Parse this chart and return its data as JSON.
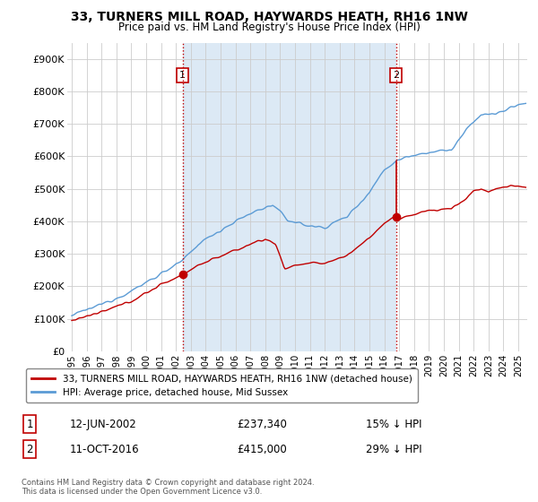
{
  "title": "33, TURNERS MILL ROAD, HAYWARDS HEATH, RH16 1NW",
  "subtitle": "Price paid vs. HM Land Registry's House Price Index (HPI)",
  "ylim": [
    0,
    950000
  ],
  "yticks": [
    0,
    100000,
    200000,
    300000,
    400000,
    500000,
    600000,
    700000,
    800000,
    900000
  ],
  "ytick_labels": [
    "£0",
    "£100K",
    "£200K",
    "£300K",
    "£400K",
    "£500K",
    "£600K",
    "£700K",
    "£800K",
    "£900K"
  ],
  "hpi_color": "#5b9bd5",
  "price_color": "#c00000",
  "marker_color": "#c00000",
  "shade_color": "#dce9f5",
  "sale1_date_x": 2002.45,
  "sale1_price": 237340,
  "sale1_label": "1",
  "sale1_date_str": "12-JUN-2002",
  "sale1_price_str": "£237,340",
  "sale1_pct_str": "15% ↓ HPI",
  "sale2_date_x": 2016.78,
  "sale2_price": 415000,
  "sale2_label": "2",
  "sale2_date_str": "11-OCT-2016",
  "sale2_price_str": "£415,000",
  "sale2_pct_str": "29% ↓ HPI",
  "legend_line1": "33, TURNERS MILL ROAD, HAYWARDS HEATH, RH16 1NW (detached house)",
  "legend_line2": "HPI: Average price, detached house, Mid Sussex",
  "footnote": "Contains HM Land Registry data © Crown copyright and database right 2024.\nThis data is licensed under the Open Government Licence v3.0.",
  "background_color": "#ffffff",
  "grid_color": "#cccccc",
  "xlim_left": 1994.7,
  "xlim_right": 2025.6
}
